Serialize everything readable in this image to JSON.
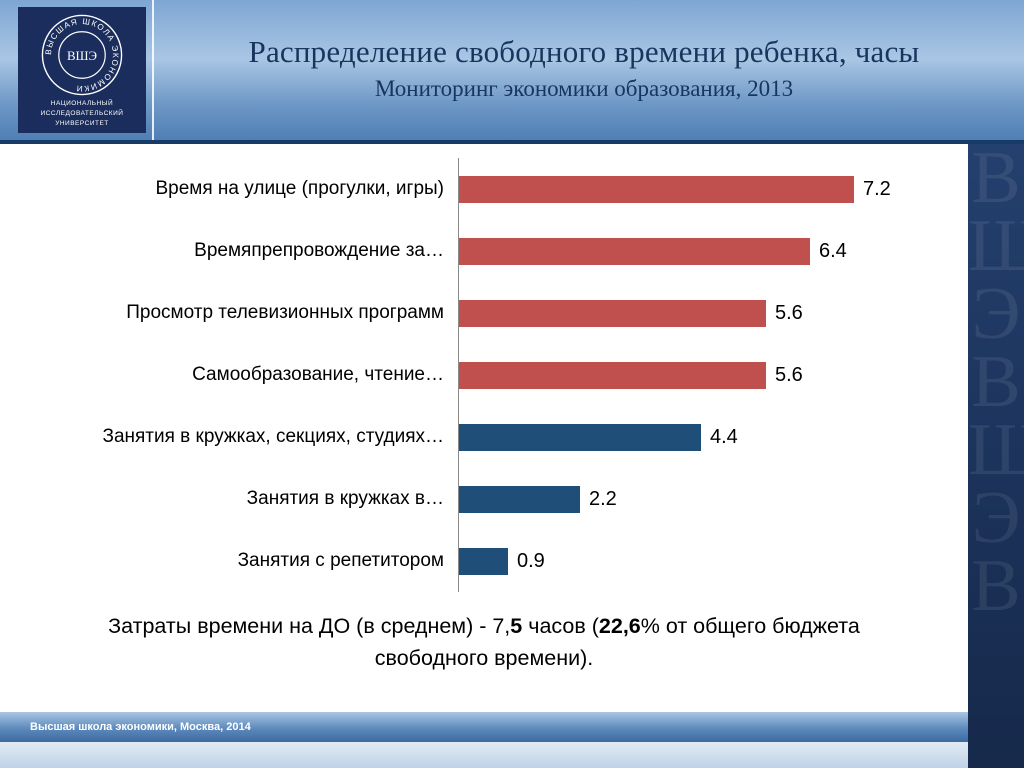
{
  "slide": {
    "title": "Распределение  свободного времени ребенка, часы",
    "subtitle": "Мониторинг экономики образования, 2013",
    "footer": "Высшая школа экономики, Москва, 2014",
    "summary": {
      "part1": "Затраты времени на ДО (в среднем) -  7,",
      "bold1": "5",
      "part2": " часов (",
      "bold2": "22,6",
      "part3": "% от общего бюджета свободного времени)."
    }
  },
  "logo": {
    "ring_text": "ВЫСШАЯ ШКОЛА ЭКОНОМИКИ",
    "monogram": "ВШЭ",
    "caption": "НАЦИОНАЛЬНЫЙ ИССЛЕДОВАТЕЛЬСКИЙ УНИВЕРСИТЕТ"
  },
  "colors": {
    "red_bar": "#c0504d",
    "blue_bar": "#1f4e79",
    "title_navy": "#17365d",
    "strip_navy": "#1b3158"
  },
  "watermark_letters": [
    "В",
    "Ш",
    "Э",
    "В",
    "Ш",
    "Э",
    "В"
  ],
  "chart_data": {
    "type": "bar",
    "orientation": "horizontal",
    "title": "Распределение свободного времени ребенка, часы",
    "categories": [
      "Время на улице (прогулки, игры)",
      "Времяпрепровождение за…",
      "Просмотр телевизионных программ",
      "Самообразование, чтение…",
      "Занятия в кружках, секциях, студиях…",
      "Занятия в кружках в…",
      "Занятия с репетитором"
    ],
    "values": [
      7.2,
      6.4,
      5.6,
      5.6,
      4.4,
      2.2,
      0.9
    ],
    "labels": [
      "7.2",
      "6.4",
      "5.6",
      "5.6",
      "4.4",
      "2.2",
      "0.9"
    ],
    "bar_colors": [
      "#c0504d",
      "#c0504d",
      "#c0504d",
      "#c0504d",
      "#1f4e79",
      "#1f4e79",
      "#1f4e79"
    ],
    "xlim": [
      0,
      9.2
    ],
    "grid": false,
    "legend": false
  }
}
